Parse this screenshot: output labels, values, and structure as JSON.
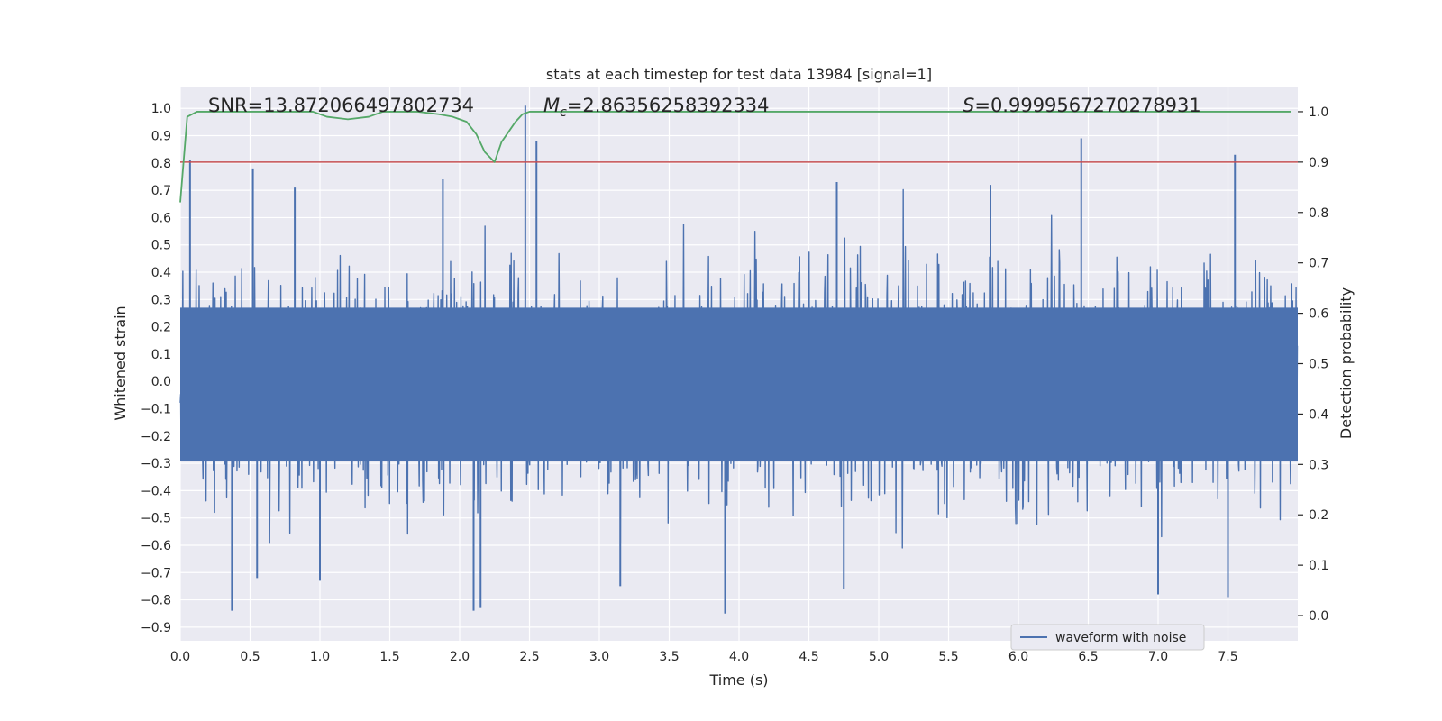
{
  "chart_data": {
    "type": "line",
    "title": "stats at each timestep for test data 13984 [signal=1]",
    "xlabel": "Time (s)",
    "ylabel_left": "Whitened strain",
    "ylabel_right": "Detection probability",
    "xlim": [
      0,
      8.0
    ],
    "ylim_left": [
      -0.95,
      1.08
    ],
    "ylim_right": [
      -0.05,
      1.05
    ],
    "x_ticks": [
      "0.0",
      "0.5",
      "1.0",
      "1.5",
      "2.0",
      "2.5",
      "3.0",
      "3.5",
      "4.0",
      "4.5",
      "5.0",
      "5.5",
      "6.0",
      "6.5",
      "7.0",
      "7.5"
    ],
    "y_ticks_left": [
      "−0.9",
      "−0.8",
      "−0.7",
      "−0.6",
      "−0.5",
      "−0.4",
      "−0.3",
      "−0.2",
      "−0.1",
      "0.0",
      "0.1",
      "0.2",
      "0.3",
      "0.4",
      "0.5",
      "0.6",
      "0.7",
      "0.8",
      "0.9",
      "1.0"
    ],
    "y_ticks_right": [
      "0.0",
      "0.1",
      "0.2",
      "0.3",
      "0.4",
      "0.5",
      "0.6",
      "0.7",
      "0.8",
      "0.9",
      "1.0"
    ],
    "grid": true,
    "legend": {
      "position": "bottom-right",
      "entries": [
        "waveform with noise"
      ]
    },
    "annotations": {
      "snr": "SNR=13.872066497802734",
      "mc_symbol": "M",
      "mc_sub": "c",
      "mc_value": "=2.86356258392334",
      "s_symbol": "S",
      "s_value": "=0.9999567270278931"
    },
    "threshold": {
      "axis": "right",
      "value": 0.9
    },
    "probability": {
      "x": [
        0.0,
        0.05,
        0.12,
        0.2,
        0.4,
        0.6,
        0.8,
        0.95,
        1.05,
        1.2,
        1.35,
        1.45,
        1.55,
        1.7,
        1.85,
        1.95,
        2.05,
        2.12,
        2.18,
        2.25,
        2.3,
        2.35,
        2.4,
        2.45,
        2.5,
        2.6,
        3.0,
        4.0,
        5.0,
        6.0,
        7.0,
        7.95
      ],
      "y": [
        0.82,
        0.99,
        1.0,
        1.0,
        1.0,
        1.0,
        1.0,
        1.0,
        0.99,
        0.985,
        0.99,
        1.0,
        1.0,
        1.0,
        0.995,
        0.99,
        0.98,
        0.955,
        0.92,
        0.9,
        0.94,
        0.96,
        0.98,
        0.995,
        1.0,
        1.0,
        1.0,
        1.0,
        1.0,
        1.0,
        1.0,
        1.0
      ]
    },
    "waveform": {
      "name": "waveform with noise",
      "duration": 8.0,
      "peaks": [
        {
          "x": 0.07,
          "y": 0.81
        },
        {
          "x": 0.52,
          "y": 0.78
        },
        {
          "x": 0.82,
          "y": 0.71
        },
        {
          "x": 1.88,
          "y": 0.74
        },
        {
          "x": 2.47,
          "y": 1.01
        },
        {
          "x": 2.55,
          "y": 0.88
        },
        {
          "x": 4.7,
          "y": 0.73
        },
        {
          "x": 5.8,
          "y": 0.72
        },
        {
          "x": 6.45,
          "y": 0.89
        },
        {
          "x": 7.55,
          "y": 0.83
        },
        {
          "x": 0.37,
          "y": -0.84
        },
        {
          "x": 2.1,
          "y": -0.84
        },
        {
          "x": 2.15,
          "y": -0.83
        },
        {
          "x": 3.9,
          "y": -0.85
        },
        {
          "x": 7.5,
          "y": -0.79
        },
        {
          "x": 7.0,
          "y": -0.78
        },
        {
          "x": 0.55,
          "y": -0.72
        },
        {
          "x": 1.0,
          "y": -0.73
        },
        {
          "x": 3.15,
          "y": -0.75
        },
        {
          "x": 4.75,
          "y": -0.76
        }
      ]
    },
    "colors": {
      "background": "#eaeaf2",
      "grid": "#ffffff",
      "waveform": "#4c72b0",
      "probability": "#55a868",
      "threshold": "#c44e52"
    }
  }
}
